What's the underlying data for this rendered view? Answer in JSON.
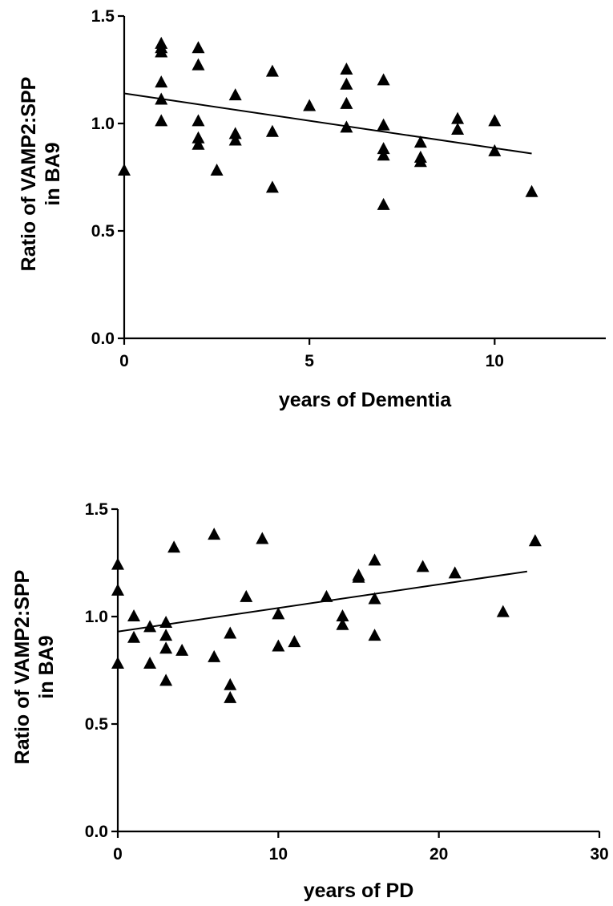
{
  "chart_data": [
    {
      "type": "scatter",
      "title": "",
      "xlabel": "years of Dementia",
      "ylabel": [
        "Ratio of VAMP2:SPP",
        "in BA9"
      ],
      "xlim": [
        0,
        13
      ],
      "ylim": [
        0,
        1.5
      ],
      "xticks": [
        0,
        5,
        10
      ],
      "yticks": [
        0.0,
        0.5,
        1.0,
        1.5
      ],
      "xtick_labels": [
        "0",
        "5",
        "10"
      ],
      "ytick_labels": [
        "0.0",
        "0.5",
        "1.0",
        "1.5"
      ],
      "marker": "triangle",
      "color": "#000000",
      "points": [
        {
          "x": 0,
          "y": 0.78
        },
        {
          "x": 1,
          "y": 1.37
        },
        {
          "x": 1,
          "y": 1.35
        },
        {
          "x": 1,
          "y": 1.33
        },
        {
          "x": 1,
          "y": 1.19
        },
        {
          "x": 1,
          "y": 1.11
        },
        {
          "x": 1,
          "y": 1.01
        },
        {
          "x": 2,
          "y": 1.35
        },
        {
          "x": 2,
          "y": 1.27
        },
        {
          "x": 2,
          "y": 1.01
        },
        {
          "x": 2,
          "y": 0.93
        },
        {
          "x": 2,
          "y": 0.9
        },
        {
          "x": 2.5,
          "y": 0.78
        },
        {
          "x": 3,
          "y": 1.13
        },
        {
          "x": 3,
          "y": 0.95
        },
        {
          "x": 3,
          "y": 0.92
        },
        {
          "x": 4,
          "y": 1.24
        },
        {
          "x": 4,
          "y": 0.96
        },
        {
          "x": 4,
          "y": 0.7
        },
        {
          "x": 5,
          "y": 1.08
        },
        {
          "x": 6,
          "y": 1.25
        },
        {
          "x": 6,
          "y": 1.18
        },
        {
          "x": 6,
          "y": 1.09
        },
        {
          "x": 6,
          "y": 0.98
        },
        {
          "x": 7,
          "y": 1.2
        },
        {
          "x": 7,
          "y": 0.99
        },
        {
          "x": 7,
          "y": 0.88
        },
        {
          "x": 7,
          "y": 0.85
        },
        {
          "x": 7,
          "y": 0.62
        },
        {
          "x": 8,
          "y": 0.91
        },
        {
          "x": 8,
          "y": 0.84
        },
        {
          "x": 8,
          "y": 0.82
        },
        {
          "x": 9,
          "y": 1.02
        },
        {
          "x": 9,
          "y": 0.97
        },
        {
          "x": 10,
          "y": 1.01
        },
        {
          "x": 10,
          "y": 0.87
        },
        {
          "x": 11,
          "y": 0.68
        }
      ],
      "fit_line": {
        "x": [
          0,
          11
        ],
        "y": [
          1.14,
          0.86
        ]
      }
    },
    {
      "type": "scatter",
      "title": "",
      "xlabel": "years of PD",
      "ylabel": [
        "Ratio of VAMP2:SPP",
        "in BA9"
      ],
      "xlim": [
        0,
        30
      ],
      "ylim": [
        0,
        1.5
      ],
      "xticks": [
        0,
        10,
        20,
        30
      ],
      "yticks": [
        0.0,
        0.5,
        1.0,
        1.5
      ],
      "xtick_labels": [
        "0",
        "10",
        "20",
        "30"
      ],
      "ytick_labels": [
        "0.0",
        "0.5",
        "1.0",
        "1.5"
      ],
      "marker": "triangle",
      "color": "#000000",
      "points": [
        {
          "x": 0,
          "y": 1.24
        },
        {
          "x": 0,
          "y": 1.12
        },
        {
          "x": 0,
          "y": 0.78
        },
        {
          "x": 1,
          "y": 1.0
        },
        {
          "x": 1,
          "y": 0.9
        },
        {
          "x": 2,
          "y": 0.95
        },
        {
          "x": 2,
          "y": 0.78
        },
        {
          "x": 3,
          "y": 0.97
        },
        {
          "x": 3,
          "y": 0.91
        },
        {
          "x": 3,
          "y": 0.85
        },
        {
          "x": 3,
          "y": 0.7
        },
        {
          "x": 3.5,
          "y": 1.32
        },
        {
          "x": 4,
          "y": 0.84
        },
        {
          "x": 6,
          "y": 1.38
        },
        {
          "x": 6,
          "y": 0.81
        },
        {
          "x": 7,
          "y": 0.92
        },
        {
          "x": 7,
          "y": 0.68
        },
        {
          "x": 7,
          "y": 0.62
        },
        {
          "x": 8,
          "y": 1.09
        },
        {
          "x": 9,
          "y": 1.36
        },
        {
          "x": 10,
          "y": 1.01
        },
        {
          "x": 10,
          "y": 0.86
        },
        {
          "x": 11,
          "y": 0.88
        },
        {
          "x": 13,
          "y": 1.09
        },
        {
          "x": 14,
          "y": 1.0
        },
        {
          "x": 14,
          "y": 0.96
        },
        {
          "x": 15,
          "y": 1.19
        },
        {
          "x": 15,
          "y": 1.18
        },
        {
          "x": 16,
          "y": 1.26
        },
        {
          "x": 16,
          "y": 1.08
        },
        {
          "x": 16,
          "y": 0.91
        },
        {
          "x": 19,
          "y": 1.23
        },
        {
          "x": 21,
          "y": 1.2
        },
        {
          "x": 24,
          "y": 1.02
        },
        {
          "x": 26,
          "y": 1.35
        }
      ],
      "fit_line": {
        "x": [
          0,
          25.5
        ],
        "y": [
          0.93,
          1.21
        ]
      }
    }
  ]
}
